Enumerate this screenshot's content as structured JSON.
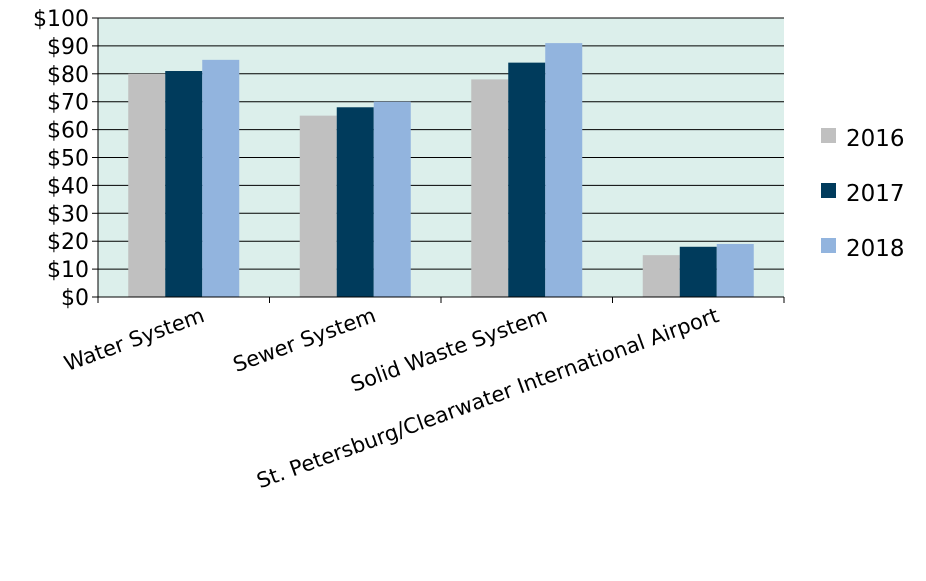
{
  "chart_data": {
    "type": "bar",
    "categories": [
      "Water System",
      "Sewer System",
      "Solid Waste System",
      "St. Petersburg/Clearwater International Airport"
    ],
    "series": [
      {
        "name": "2016",
        "values": [
          80,
          65,
          78,
          15
        ],
        "color": "#c0c0c0"
      },
      {
        "name": "2017",
        "values": [
          81,
          68,
          84,
          18
        ],
        "color": "#003b5c"
      },
      {
        "name": "2018",
        "values": [
          85,
          70,
          91,
          19
        ],
        "color": "#92b4de"
      }
    ],
    "y_ticks": [
      "$0",
      "$10",
      "$20",
      "$30",
      "$40",
      "$50",
      "$60",
      "$70",
      "$80",
      "$90",
      "$100"
    ],
    "ylim": [
      0,
      100
    ],
    "grid": true,
    "legend_position": "right",
    "colors": {
      "plot_background": "#dcefeb",
      "gridline": "#000000"
    }
  }
}
